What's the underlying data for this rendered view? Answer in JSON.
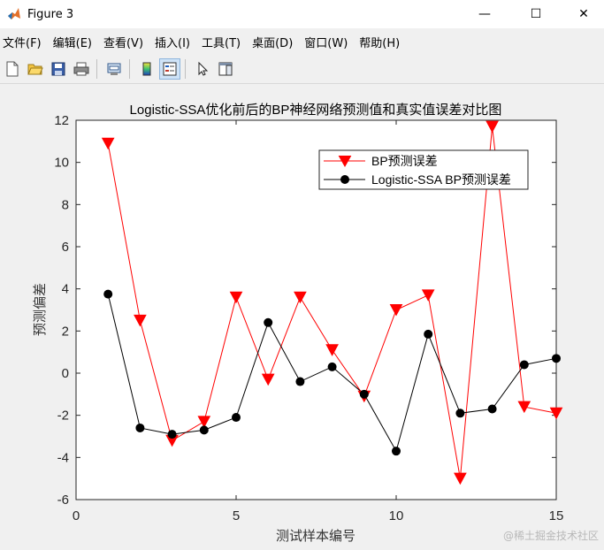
{
  "window": {
    "title": "Figure 3",
    "minimize_glyph": "—",
    "maximize_glyph": "☐",
    "close_glyph": "✕"
  },
  "menu": [
    "文件(F)",
    "编辑(E)",
    "查看(V)",
    "插入(I)",
    "工具(T)",
    "桌面(D)",
    "窗口(W)",
    "帮助(H)"
  ],
  "toolbar": {
    "buttons": [
      "new-file-icon",
      "open-folder-icon",
      "save-icon",
      "print-icon",
      "print-preview-icon",
      "colorbar-icon",
      "legend-icon",
      "pointer-icon",
      "property-editor-icon"
    ]
  },
  "watermark": "@稀土掘金技术社区",
  "chart_data": {
    "type": "line",
    "title": "Logistic-SSA优化前后的BP神经网络预测值和真实值误差对比图",
    "xlabel": "测试样本编号",
    "ylabel": "预测偏差",
    "xlim": [
      0,
      15
    ],
    "ylim": [
      -6,
      12
    ],
    "xticks": [
      0,
      5,
      10,
      15
    ],
    "yticks": [
      -6,
      -4,
      -2,
      0,
      2,
      4,
      6,
      8,
      10,
      12
    ],
    "grid": false,
    "legend_position": "top-right",
    "x": [
      1,
      2,
      3,
      4,
      5,
      6,
      7,
      8,
      9,
      10,
      11,
      12,
      13,
      14,
      15
    ],
    "series": [
      {
        "name": "BP预测误差",
        "color": "#ff0000",
        "marker": "triangle-down",
        "values": [
          10.9,
          2.5,
          -3.2,
          -2.3,
          3.6,
          -0.3,
          3.6,
          1.1,
          -1.1,
          3.0,
          3.7,
          -5.0,
          11.7,
          -1.6,
          -1.9
        ]
      },
      {
        "name": "Logistic-SSA BP预测误差",
        "color": "#000000",
        "marker": "circle",
        "values": [
          3.75,
          -2.6,
          -2.9,
          -2.7,
          -2.1,
          2.4,
          -0.4,
          0.3,
          -1.0,
          -3.7,
          1.85,
          -1.9,
          -1.7,
          0.4,
          0.7
        ]
      }
    ]
  }
}
